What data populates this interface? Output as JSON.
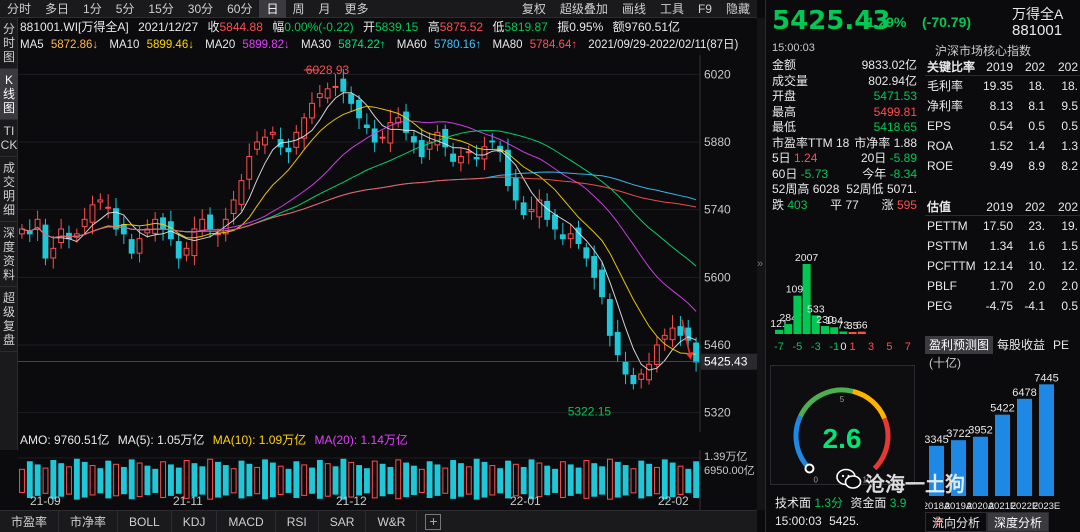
{
  "period_tabs": [
    "分时",
    "多日",
    "1分",
    "5分",
    "15分",
    "30分",
    "60分",
    "日",
    "周",
    "月",
    "更多"
  ],
  "period_active": "日",
  "period_right": [
    "复权",
    "超级叠加",
    "画线",
    "工具",
    "F9",
    "隐藏"
  ],
  "vertical_tabs": [
    "分时图",
    "K线图",
    "TICK",
    "成交明细",
    "深度资料",
    "超级复盘"
  ],
  "info": {
    "code": "881001.WI[万得全A]",
    "date": "2021/12/27",
    "close_label": "收",
    "close": "5844.88",
    "amp_label": "幅",
    "amp": "0.00%(-0.22)",
    "open_label": "开",
    "open": "5839.15",
    "high_label": "高",
    "high": "5875.52",
    "low_label": "低",
    "low": "5819.87",
    "swing_label": "振",
    "swing": "0.95%",
    "amount_label": "额",
    "amount": "9760.51亿"
  },
  "ma_row": {
    "ma5_label": "MA5",
    "ma5": "5872.86↓",
    "ma10_label": "MA10",
    "ma10": "5899.46↓",
    "ma20_label": "MA20",
    "ma20": "5899.82↓",
    "ma30_label": "MA30",
    "ma30": "5874.22↑",
    "ma60_label": "MA60",
    "ma60": "5780.16↑",
    "ma80_label": "MA80",
    "ma80": "5784.64↑",
    "range": "2021/09/29-2022/02/11(87日)"
  },
  "amo_row": {
    "label": "AMO: 9760.51亿",
    "ma5": "MA(5): 1.05万亿",
    "ma10": "MA(10): 1.09万亿",
    "ma20": "MA(20): 1.14万亿"
  },
  "x_axis_labels": [
    "21-09",
    "21-11",
    "21-12",
    "22-01",
    "22-02"
  ],
  "price_axis": [
    "6020",
    "5880",
    "5740",
    "5600",
    "5460",
    "5320"
  ],
  "current_price_tag": "5425.43",
  "annot_high": "6028.93",
  "annot_low": "5322.15",
  "vol_axis": [
    "1.39万亿",
    "6950.00亿"
  ],
  "bottom_tabs": [
    "市盈率",
    "市净率",
    "BOLL",
    "KDJ",
    "MACD",
    "RSI",
    "SAR",
    "W&R"
  ],
  "colors": {
    "up": "#ff4d4d",
    "down": "#00c853",
    "ma5": "#e8e8e8",
    "ma10": "#ffd600",
    "ma20": "#e040fb",
    "ma30": "#00e676",
    "ma60": "#40c4ff",
    "ma80": "#ff5252",
    "cyan": "#1ec8d8"
  },
  "right": {
    "price": "5425.43",
    "chg_pct": "-1.29%",
    "chg_abs": "(-70.79)",
    "name": "万得全A",
    "code": "881001",
    "time": "15:00:03",
    "index_label": "沪深市场核心指数",
    "stats": [
      {
        "k": "金额",
        "v": "9833.02亿",
        "c": "white"
      },
      {
        "k": "成交量",
        "v": "802.94亿",
        "c": "white"
      },
      {
        "k": "开盘",
        "v": "5471.53",
        "c": "green"
      },
      {
        "k": "最高",
        "v": "5499.81",
        "c": "red"
      },
      {
        "k": "最低",
        "v": "5418.65",
        "c": "green"
      }
    ],
    "pe_row": {
      "k1": "市盈率TTM",
      "v1": "18",
      "k2": "市净率",
      "v2": "1.88"
    },
    "d5_row": {
      "k1": "5日",
      "v1": "1.24",
      "k2": "20日",
      "v2": "-5.89"
    },
    "d60_row": {
      "k1": "60日",
      "v1": "-5.73",
      "k2": "今年",
      "v2": "-8.34"
    },
    "w52_row": {
      "k1": "52周高",
      "v1": "6028",
      "k2": "52周低",
      "v2": "5071."
    },
    "breadth": {
      "down_label": "跌",
      "down": "403",
      "flat_label": "平",
      "flat": "77",
      "up_label": "涨",
      "up": "595"
    },
    "key_ratios_title": "关键比率",
    "key_ratios_cols": [
      "2019",
      "202",
      "202"
    ],
    "key_ratios": [
      {
        "k": "毛利率",
        "v": [
          "19.35",
          "18.",
          "18."
        ]
      },
      {
        "k": "净利率",
        "v": [
          "8.13",
          "8.1",
          "9.5"
        ]
      },
      {
        "k": "EPS",
        "v": [
          "0.54",
          "0.5",
          "0.5"
        ]
      },
      {
        "k": "ROA",
        "v": [
          "1.52",
          "1.4",
          "1.3"
        ]
      },
      {
        "k": "ROE",
        "v": [
          "9.49",
          "8.9",
          "8.2"
        ]
      }
    ],
    "valuation_title": "估值",
    "valuation_cols": [
      "2019",
      "202",
      "202"
    ],
    "valuation": [
      {
        "k": "PETTM",
        "v": [
          "17.50",
          "23.",
          "19."
        ]
      },
      {
        "k": "PSTTM",
        "v": [
          "1.34",
          "1.6",
          "1.5"
        ]
      },
      {
        "k": "PCFTTM",
        "v": [
          "12.14",
          "10.",
          "12."
        ]
      },
      {
        "k": "PBLF",
        "v": [
          "1.70",
          "2.0",
          "2.0"
        ]
      },
      {
        "k": "PEG",
        "v": [
          "-4.75",
          "-4.1",
          "0.5"
        ]
      }
    ],
    "forecast_tabs": [
      "盈利预测图",
      "每股收益",
      "PE"
    ],
    "forecast_unit": "(十亿)",
    "gauge_value": "2.6",
    "gauge_min": "0",
    "gauge_mid": "5",
    "gauge_max": "10",
    "tech_label": "技术面",
    "tech_val": "1.3分",
    "fund_label": "资金面",
    "fund_val": "3.9",
    "tick_time": "15:00:03",
    "tick_price": "5425.",
    "tick_vol": "0",
    "bottom_tabs": [
      "流向分析",
      "深度分析"
    ],
    "watermark": "沧海一土狗"
  },
  "chart_data": [
    {
      "type": "bar",
      "title": "",
      "categories": [
        "-7",
        "-6",
        "-5",
        "-4",
        "-3",
        "-2",
        "-1",
        "0",
        "1",
        "2",
        "3",
        "4",
        "5",
        "6",
        "7"
      ],
      "values": [
        121,
        284,
        1099,
        2007,
        533,
        230,
        194,
        73,
        35,
        66,
        0,
        0,
        0,
        0,
        0
      ],
      "labels": [
        "121",
        "284",
        "1099",
        "2007",
        "533",
        "230",
        "194",
        "73",
        "35",
        "66"
      ],
      "x_ticks": [
        "-7",
        "-5",
        "-3",
        "-1",
        "0",
        "1",
        "3",
        "5",
        "7"
      ]
    },
    {
      "type": "bar",
      "title": "盈利预测图",
      "ylabel": "(十亿)",
      "categories": [
        "2018A",
        "2019A",
        "2020A",
        "2021E",
        "2022E",
        "2023E"
      ],
      "values": [
        3345,
        3722,
        3952,
        5422,
        6478,
        7445
      ]
    }
  ]
}
